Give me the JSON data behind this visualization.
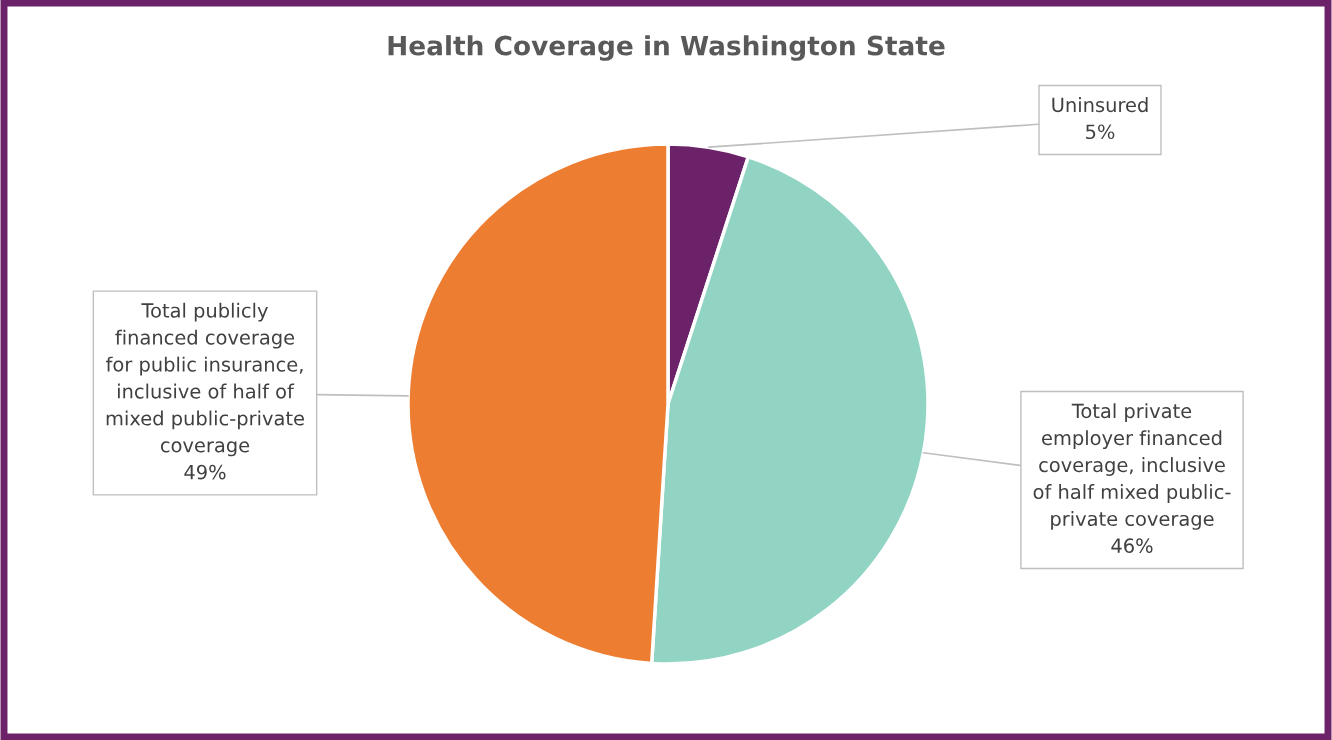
{
  "chart_data": {
    "type": "pie",
    "title": "Health Coverage in Washington State",
    "categories": [
      "Uninsured",
      "Total private\nemployer financed\ncoverage, inclusive\nof half mixed public-\nprivate coverage",
      "Total publicly\nfinanced coverage\nfor public insurance,\ninclusive of half of\nmixed public-private\ncoverage"
    ],
    "values": [
      5,
      46,
      49
    ],
    "value_labels": [
      "5%",
      "46%",
      "49%"
    ],
    "colors": [
      "#6b2268",
      "#92d4c4",
      "#ed7d31"
    ],
    "legend": false
  }
}
